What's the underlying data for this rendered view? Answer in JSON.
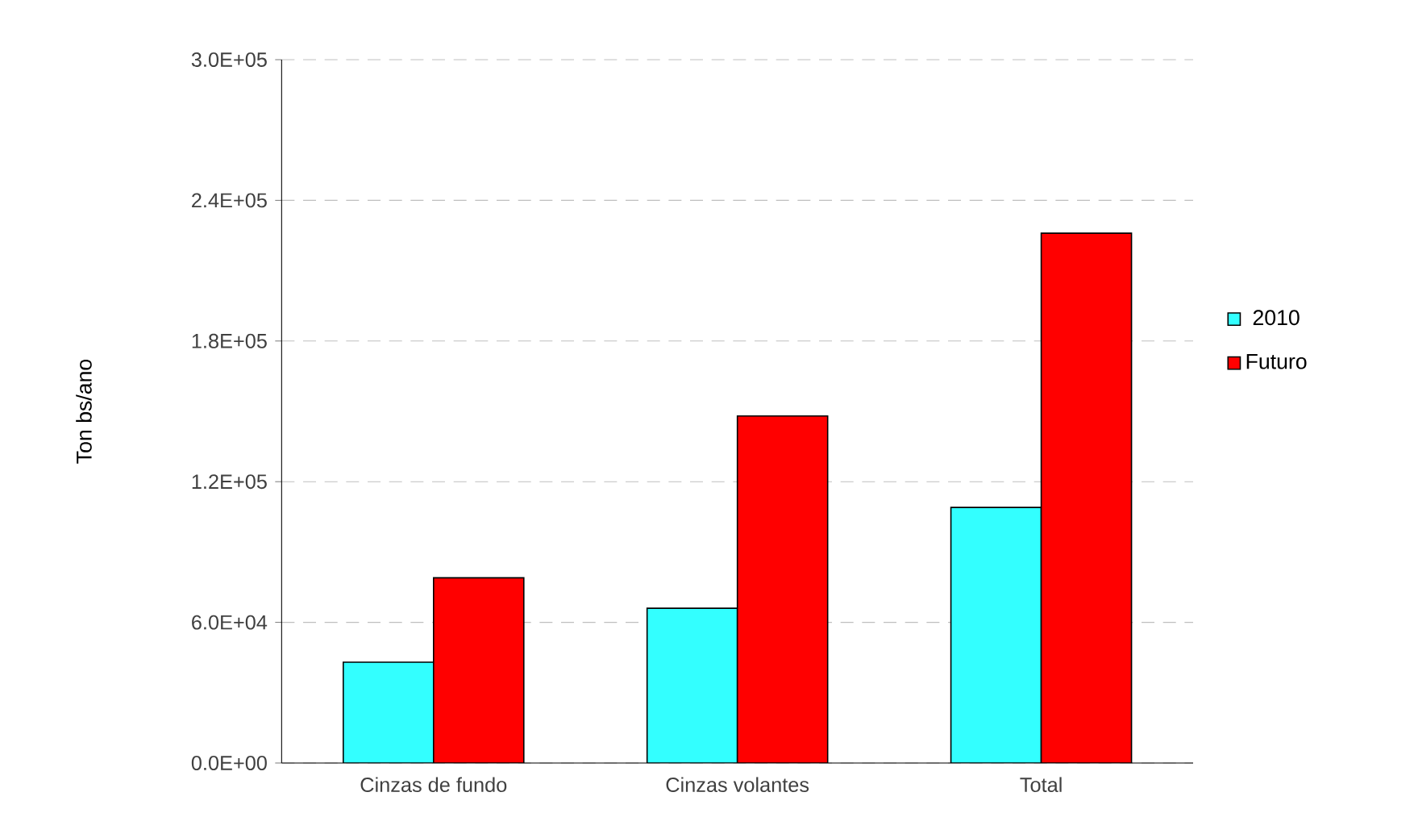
{
  "chart_data": {
    "type": "bar",
    "ylabel": "Ton bs/ano",
    "categories": [
      "Cinzas de fundo",
      "Cinzas volantes",
      "Total"
    ],
    "series": [
      {
        "name": "2010",
        "color": "#33ffff",
        "values": [
          43000,
          66000,
          109000
        ]
      },
      {
        "name": "Futuro",
        "color": "#ff0000",
        "values": [
          79000,
          148000,
          226000
        ]
      }
    ],
    "ylim": [
      0,
      300000
    ],
    "yticks": [
      {
        "value": 0,
        "label": "0.0E+00"
      },
      {
        "value": 60000,
        "label": "6.0E+04"
      },
      {
        "value": 120000,
        "label": "1.2E+05"
      },
      {
        "value": 180000,
        "label": "1.8E+05"
      },
      {
        "value": 240000,
        "label": "2.4E+05"
      },
      {
        "value": 300000,
        "label": "3.0E+05"
      }
    ],
    "grid": "y",
    "legend": "right"
  }
}
